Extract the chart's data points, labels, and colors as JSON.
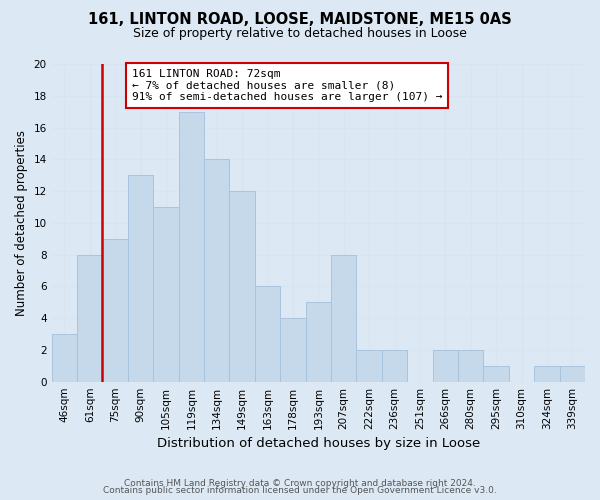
{
  "title": "161, LINTON ROAD, LOOSE, MAIDSTONE, ME15 0AS",
  "subtitle": "Size of property relative to detached houses in Loose",
  "xlabel": "Distribution of detached houses by size in Loose",
  "ylabel": "Number of detached properties",
  "footer1": "Contains HM Land Registry data © Crown copyright and database right 2024.",
  "footer2": "Contains public sector information licensed under the Open Government Licence v3.0.",
  "bin_labels": [
    "46sqm",
    "61sqm",
    "75sqm",
    "90sqm",
    "105sqm",
    "119sqm",
    "134sqm",
    "149sqm",
    "163sqm",
    "178sqm",
    "193sqm",
    "207sqm",
    "222sqm",
    "236sqm",
    "251sqm",
    "266sqm",
    "280sqm",
    "295sqm",
    "310sqm",
    "324sqm",
    "339sqm"
  ],
  "bin_values": [
    3,
    8,
    9,
    13,
    11,
    17,
    14,
    12,
    6,
    4,
    5,
    8,
    2,
    2,
    0,
    2,
    2,
    1,
    0,
    1,
    1
  ],
  "bar_color": "#c5d9ea",
  "bar_edge_color": "#a8c4dc",
  "grid_color": "#d8e4ef",
  "bg_color": "#dce9f5",
  "ylim": [
    0,
    20
  ],
  "yticks": [
    0,
    2,
    4,
    6,
    8,
    10,
    12,
    14,
    16,
    18,
    20
  ],
  "vline_color": "#cc0000",
  "annotation_line1": "161 LINTON ROAD: 72sqm",
  "annotation_line2": "← 7% of detached houses are smaller (8)",
  "annotation_line3": "91% of semi-detached houses are larger (107) →",
  "annotation_box_color": "#ffffff",
  "annotation_box_edge": "#cc0000",
  "annotation_fontsize": 8.0,
  "title_fontsize": 10.5,
  "subtitle_fontsize": 9.0,
  "xlabel_fontsize": 9.5,
  "ylabel_fontsize": 8.5,
  "tick_fontsize": 7.5,
  "footer_fontsize": 6.5
}
